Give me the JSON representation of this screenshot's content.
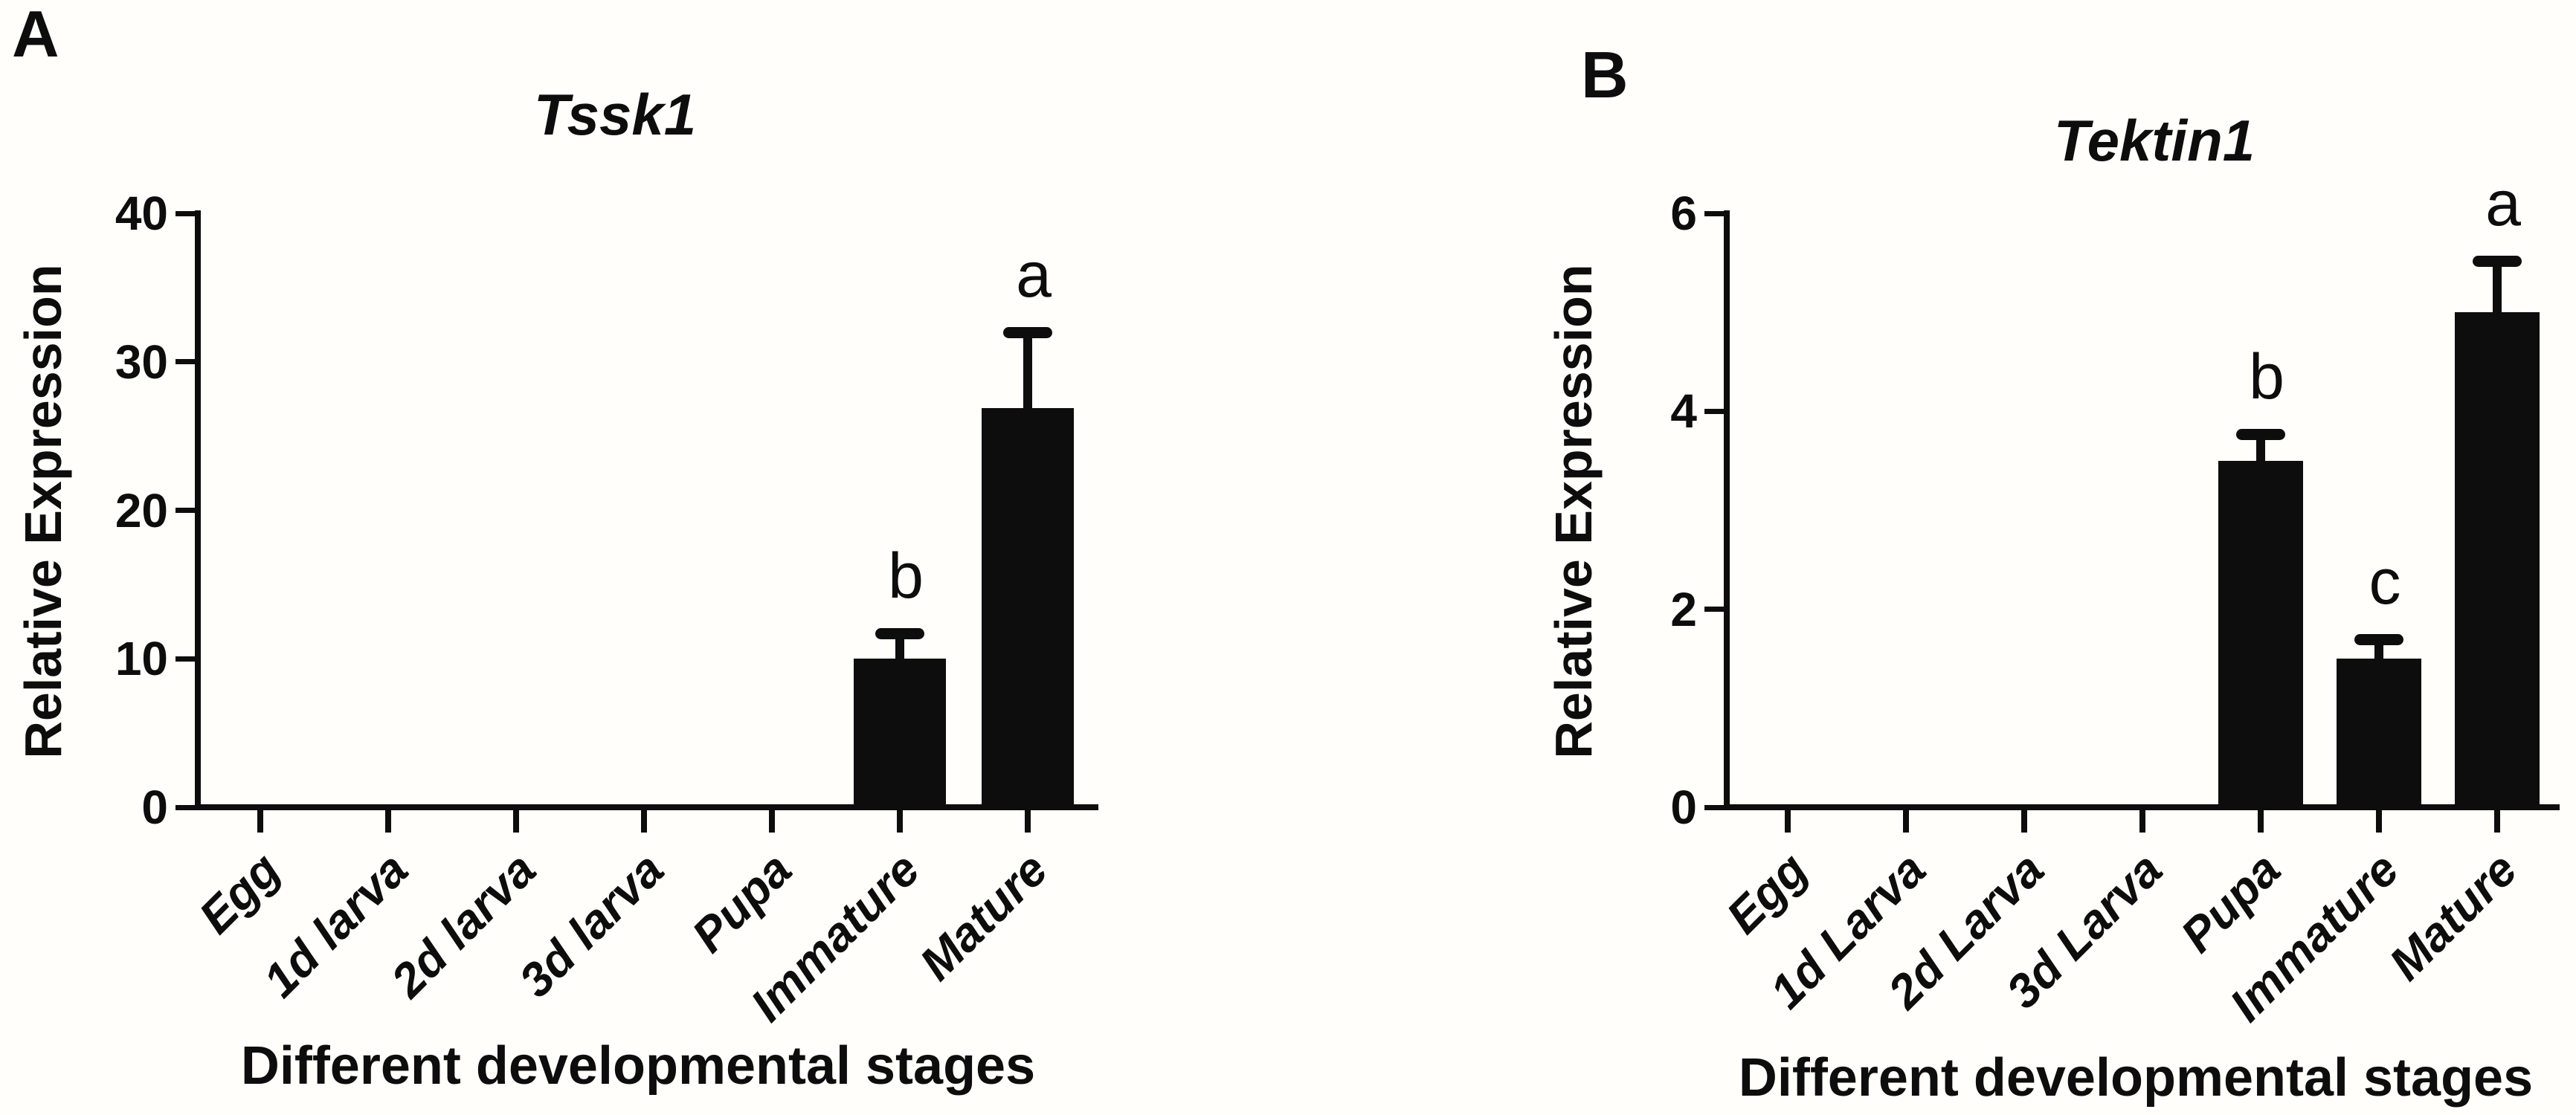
{
  "figure": {
    "background": "#fffefa",
    "ink": "#0d0d0d"
  },
  "chart_data": [
    {
      "type": "bar",
      "panel_letter": "A",
      "title": "Tssk1",
      "ylabel": "Relative Expression",
      "xlabel": "Different developmental stages",
      "categories": [
        "Egg",
        "1d larva",
        "2d larva",
        "3d larva",
        "Pupa",
        "Immature",
        "Mature"
      ],
      "values": [
        0,
        0,
        0,
        0,
        0,
        10,
        26.9
      ],
      "errors_plus": [
        0,
        0,
        0,
        0,
        0,
        1.7,
        5.1
      ],
      "sig_letters": [
        "",
        "",
        "",
        "",
        "",
        "b",
        "a"
      ],
      "ylim": [
        0,
        40
      ],
      "yticks": [
        0,
        10,
        20,
        30,
        40
      ],
      "bar_color": "#0d0d0d",
      "grid": false,
      "legend": "none"
    },
    {
      "type": "bar",
      "panel_letter": "B",
      "title": "Tektin1",
      "ylabel": "Relative Expression",
      "xlabel": "Different developmental stages",
      "categories": [
        "Egg",
        "1d Larva",
        "2d Larva",
        "3d Larva",
        "Pupa",
        "Immature",
        "Mature"
      ],
      "values": [
        0,
        0,
        0,
        0,
        3.5,
        1.5,
        5.0
      ],
      "errors_plus": [
        0,
        0,
        0,
        0,
        0.27,
        0.2,
        0.52
      ],
      "sig_letters": [
        "",
        "",
        "",
        "",
        "b",
        "c",
        "a"
      ],
      "ylim": [
        0,
        6
      ],
      "yticks": [
        0,
        2,
        4,
        6
      ],
      "bar_color": "#0d0d0d",
      "grid": false,
      "legend": "none"
    }
  ]
}
